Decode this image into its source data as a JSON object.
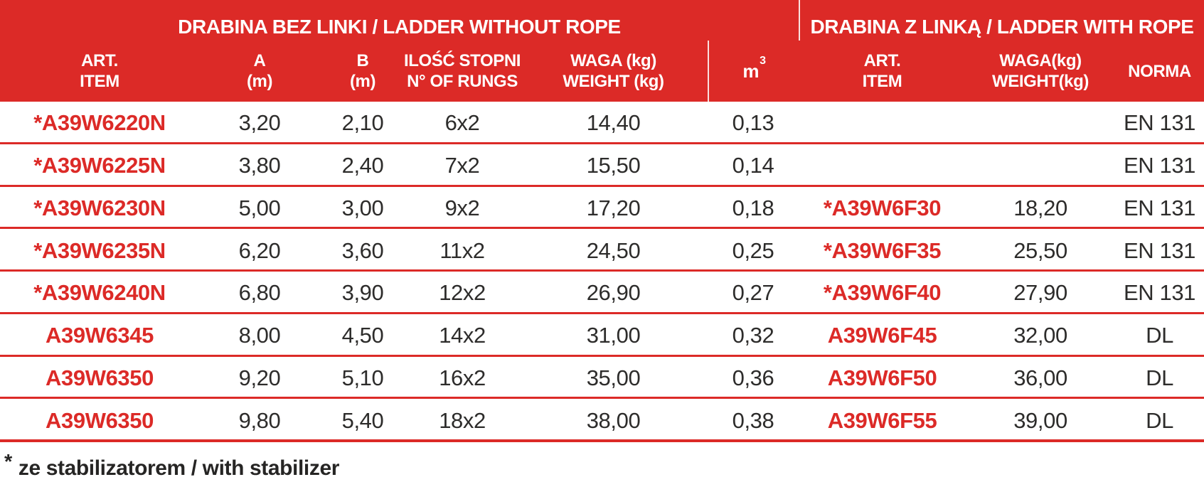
{
  "colors": {
    "red": "#DC2A27",
    "text_dark": "#2D2C2B",
    "header_text": "#FFFFFF"
  },
  "table": {
    "group_headers": [
      {
        "label": "DRABINA BEZ LINKI / LADDER WITHOUT ROPE"
      },
      {
        "label": "DRABINA Z LINKĄ / LADDER WITH ROPE"
      }
    ],
    "columns": [
      {
        "line1": "ART.",
        "line2": "ITEM"
      },
      {
        "line1": "A",
        "line2": "(m)"
      },
      {
        "line1": "B",
        "line2": "(m)"
      },
      {
        "line1": "ILOŚĆ STOPNI",
        "line2": "N° OF RUNGS"
      },
      {
        "line1": "WAGA (kg)",
        "line2": "WEIGHT (kg)"
      },
      {
        "base": "m",
        "sup": "3"
      },
      {
        "line1": "ART.",
        "line2": "ITEM"
      },
      {
        "line1": "WAGA(kg)",
        "line2": "WEIGHT(kg)"
      },
      {
        "line1": "NORMA"
      }
    ],
    "rows": [
      {
        "item": "*A39W6220N",
        "a": "3,20",
        "b": "2,10",
        "rungs": "6x2",
        "weight": "14,40",
        "m3": "0,13",
        "item2": "",
        "weight2": "",
        "norma": "EN 131"
      },
      {
        "item": "*A39W6225N",
        "a": "3,80",
        "b": "2,40",
        "rungs": "7x2",
        "weight": "15,50",
        "m3": "0,14",
        "item2": "",
        "weight2": "",
        "norma": "EN 131"
      },
      {
        "item": "*A39W6230N",
        "a": "5,00",
        "b": "3,00",
        "rungs": "9x2",
        "weight": "17,20",
        "m3": "0,18",
        "item2": "*A39W6F30",
        "weight2": "18,20",
        "norma": "EN 131"
      },
      {
        "item": "*A39W6235N",
        "a": "6,20",
        "b": "3,60",
        "rungs": "11x2",
        "weight": "24,50",
        "m3": "0,25",
        "item2": "*A39W6F35",
        "weight2": "25,50",
        "norma": "EN 131"
      },
      {
        "item": "*A39W6240N",
        "a": "6,80",
        "b": "3,90",
        "rungs": "12x2",
        "weight": "26,90",
        "m3": "0,27",
        "item2": "*A39W6F40",
        "weight2": "27,90",
        "norma": "EN 131"
      },
      {
        "item": "A39W6345",
        "a": "8,00",
        "b": "4,50",
        "rungs": "14x2",
        "weight": "31,00",
        "m3": "0,32",
        "item2": "A39W6F45",
        "weight2": "32,00",
        "norma": "DL"
      },
      {
        "item": "A39W6350",
        "a": "9,20",
        "b": "5,10",
        "rungs": "16x2",
        "weight": "35,00",
        "m3": "0,36",
        "item2": "A39W6F50",
        "weight2": "36,00",
        "norma": "DL"
      },
      {
        "item": "A39W6350",
        "a": "9,80",
        "b": "5,40",
        "rungs": "18x2",
        "weight": "38,00",
        "m3": "0,38",
        "item2": "A39W6F55",
        "weight2": "39,00",
        "norma": "DL"
      }
    ],
    "footnote_star": "*",
    "footnote_text": "ze stabilizatorem / with stabilizer"
  }
}
